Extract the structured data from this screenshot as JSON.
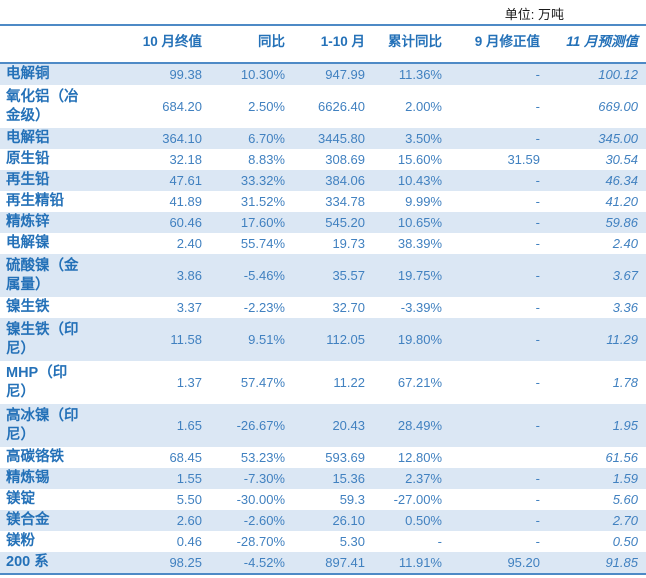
{
  "unit_label": "单位: 万吨",
  "table": {
    "columns": [
      "10 月终值",
      "同比",
      "1-10 月",
      "累计同比",
      "9 月修正值",
      "11 月预测值"
    ],
    "rows": [
      {
        "label": "电解铜",
        "values": [
          "99.38",
          "10.30%",
          "947.99",
          "11.36%",
          "-",
          "100.12"
        ]
      },
      {
        "label": "氧化铝（冶\n金级）",
        "values": [
          "684.20",
          "2.50%",
          "6626.40",
          "2.00%",
          "-",
          "669.00"
        ]
      },
      {
        "label": "电解铝",
        "values": [
          "364.10",
          "6.70%",
          "3445.80",
          "3.50%",
          "-",
          "345.00"
        ]
      },
      {
        "label": "原生铅",
        "values": [
          "32.18",
          "8.83%",
          "308.69",
          "15.60%",
          "31.59",
          "30.54"
        ]
      },
      {
        "label": "再生铅",
        "values": [
          "47.61",
          "33.32%",
          "384.06",
          "10.43%",
          "-",
          "46.34"
        ]
      },
      {
        "label": "再生精铅",
        "values": [
          "41.89",
          "31.52%",
          "334.78",
          "9.99%",
          "-",
          "41.20"
        ]
      },
      {
        "label": "精炼锌",
        "values": [
          "60.46",
          "17.60%",
          "545.20",
          "10.65%",
          "-",
          "59.86"
        ]
      },
      {
        "label": "电解镍",
        "values": [
          "2.40",
          "55.74%",
          "19.73",
          "38.39%",
          "-",
          "2.40"
        ]
      },
      {
        "label": "硫酸镍（金\n属量）",
        "values": [
          "3.86",
          "-5.46%",
          "35.57",
          "19.75%",
          "-",
          "3.67"
        ]
      },
      {
        "label": "镍生铁",
        "values": [
          "3.37",
          "-2.23%",
          "32.70",
          "-3.39%",
          "-",
          "3.36"
        ]
      },
      {
        "label": "镍生铁（印\n尼）",
        "values": [
          "11.58",
          "9.51%",
          "112.05",
          "19.80%",
          "-",
          "11.29"
        ]
      },
      {
        "label": "MHP（印\n尼）",
        "values": [
          "1.37",
          "57.47%",
          "11.22",
          "67.21%",
          "-",
          "1.78"
        ]
      },
      {
        "label": "高冰镍（印\n尼）",
        "values": [
          "1.65",
          "-26.67%",
          "20.43",
          "28.49%",
          "-",
          "1.95"
        ]
      },
      {
        "label": "高碳铬铁",
        "values": [
          "68.45",
          "53.23%",
          "593.69",
          "12.80%",
          "",
          "61.56"
        ]
      },
      {
        "label": "精炼锡",
        "values": [
          "1.55",
          "-7.30%",
          "15.36",
          "2.37%",
          "-",
          "1.59"
        ]
      },
      {
        "label": "镁锭",
        "values": [
          "5.50",
          "-30.00%",
          "59.3",
          "-27.00%",
          "-",
          "5.60"
        ]
      },
      {
        "label": "镁合金",
        "values": [
          "2.60",
          "-2.60%",
          "26.10",
          "0.50%",
          "-",
          "2.70"
        ]
      },
      {
        "label": "镁粉",
        "values": [
          "0.46",
          "-28.70%",
          "5.30",
          "-",
          "-",
          "0.50"
        ]
      },
      {
        "label": "200 系",
        "values": [
          "98.25",
          "-4.52%",
          "897.41",
          "11.91%",
          "95.20",
          "91.85"
        ]
      }
    ]
  },
  "colors": {
    "accent_border": "#4E8AC6",
    "stripe_bg": "#DBE7F4",
    "label_text": "#2471B8",
    "value_text": "#4181C0"
  }
}
